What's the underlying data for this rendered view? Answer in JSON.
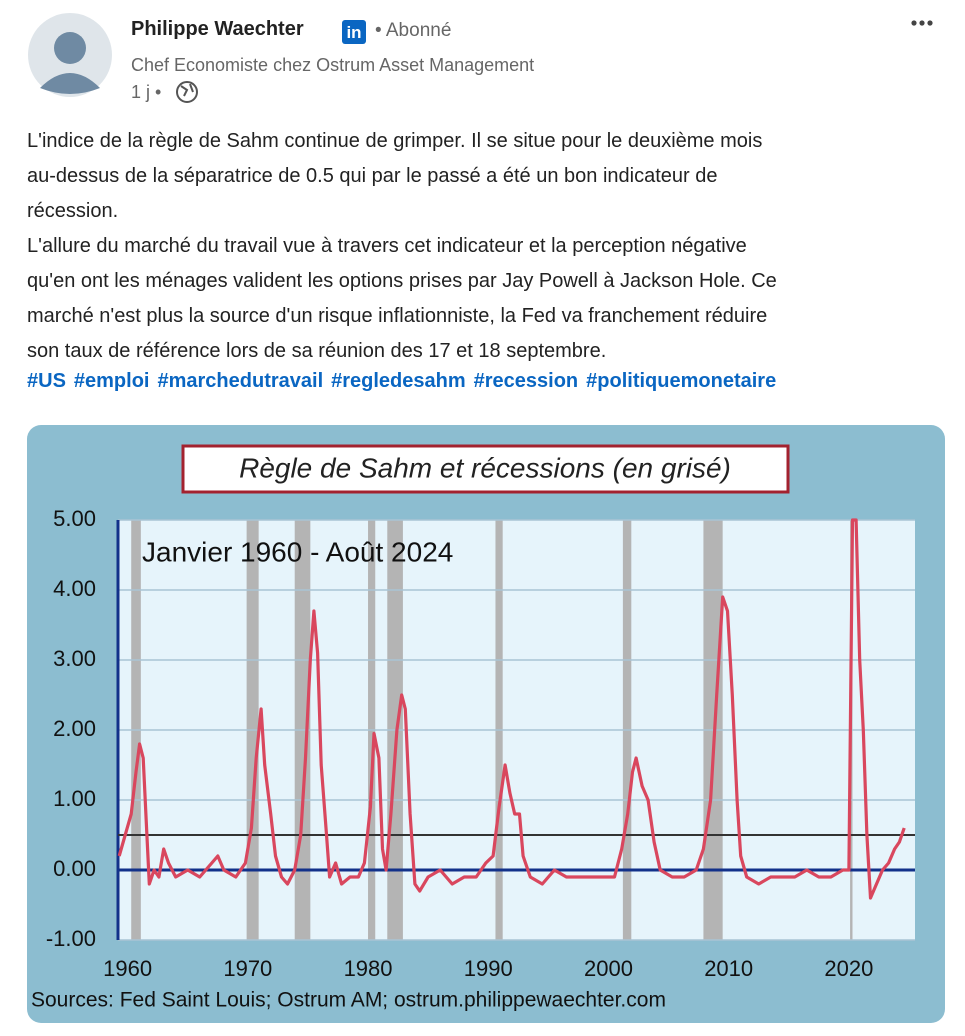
{
  "post": {
    "author": "Philippe Waechter",
    "badge": "in",
    "status": "• Abonné",
    "headline": "Chef Economiste chez Ostrum Asset Management",
    "time": "1 j •",
    "text_lines": [
      "L'indice de la règle de Sahm continue de grimper. Il se situe pour le deuxième mois",
      "au-dessus de la séparatrice de 0.5 qui par le passé a été un bon indicateur de",
      "récession.",
      "L'allure du marché du travail vue à travers cet indicateur et la perception négative",
      "qu'en ont les ménages valident les options prises par Jay Powell à Jackson Hole. Ce",
      "marché n'est plus la source d'un risque inflationniste, la Fed va franchement réduire",
      "son taux de référence lors de sa réunion des 17 et 18 septembre."
    ],
    "hashtags": [
      "#US",
      "#emploi",
      "#marchedutravail",
      "#regledesahm",
      "#recession",
      "#politiquemonetaire"
    ]
  },
  "chart_data": {
    "type": "line",
    "title": "Règle de Sahm et récessions (en grisé)",
    "annotation": "Janvier 1960 - Août 2024",
    "source": "Sources: Fed Saint Louis; Ostrum AM; ostrum.philippewaechter.com",
    "xlim": [
      1959.2,
      2025.5
    ],
    "xticks": [
      1960,
      1970,
      1980,
      1990,
      2000,
      2010,
      2020
    ],
    "ylim": [
      -1,
      5
    ],
    "yticks": [
      {
        "value": 5,
        "label": "5.00"
      },
      {
        "value": 4,
        "label": "4.00"
      },
      {
        "value": 3,
        "label": "3.00"
      },
      {
        "value": 2,
        "label": "2.00"
      },
      {
        "value": 1,
        "label": "1.00"
      },
      {
        "value": 0,
        "label": "0.00"
      },
      {
        "value": -1,
        "label": "-1.00"
      }
    ],
    "grid": true,
    "threshold": 0.5,
    "recessions": [
      [
        1960.3,
        1961.1
      ],
      [
        1969.9,
        1970.9
      ],
      [
        1973.9,
        1975.2
      ],
      [
        1980.0,
        1980.6
      ],
      [
        1981.6,
        1982.9
      ],
      [
        1990.6,
        1991.2
      ],
      [
        2001.2,
        2001.9
      ],
      [
        2007.9,
        2009.5
      ],
      [
        2020.1,
        2020.3
      ]
    ],
    "series": [
      {
        "color": "#d9475e",
        "x": [
          1959.3,
          1959.8,
          1960.3,
          1960.7,
          1961.0,
          1961.3,
          1961.6,
          1961.8,
          1962.2,
          1962.6,
          1963.0,
          1963.4,
          1964,
          1965,
          1966,
          1967,
          1967.5,
          1968,
          1969,
          1969.8,
          1970.3,
          1970.7,
          1971.1,
          1971.4,
          1971.9,
          1972.3,
          1972.8,
          1973.3,
          1973.9,
          1974.4,
          1974.8,
          1975.2,
          1975.5,
          1975.8,
          1976.1,
          1976.5,
          1976.8,
          1977.3,
          1977.8,
          1978.5,
          1979.2,
          1979.7,
          1980.2,
          1980.5,
          1980.9,
          1981.2,
          1981.5,
          1981.9,
          1982.4,
          1982.8,
          1983.1,
          1983.5,
          1983.9,
          1984.3,
          1985,
          1986,
          1987,
          1988,
          1989,
          1989.8,
          1990.4,
          1990.9,
          1991.4,
          1991.8,
          1992.2,
          1992.6,
          1992.9,
          1993.5,
          1994.5,
          1995.5,
          1996.5,
          1997.5,
          1998.5,
          1999.5,
          2000.5,
          2001.1,
          2001.6,
          2002.0,
          2002.3,
          2002.8,
          2003.3,
          2003.8,
          2004.3,
          2005.3,
          2006.3,
          2007.3,
          2007.9,
          2008.5,
          2009.0,
          2009.5,
          2009.9,
          2010.3,
          2010.7,
          2011.0,
          2011.5,
          2012.5,
          2013.5,
          2014.5,
          2015.5,
          2016.5,
          2017.5,
          2018.5,
          2019.5,
          2020.0,
          2020.3,
          2020.6,
          2020.9,
          2021.2,
          2021.5,
          2021.8,
          2022.3,
          2022.8,
          2023.3,
          2023.8,
          2024.2,
          2024.6
        ],
        "values": [
          0.2,
          0.5,
          0.8,
          1.4,
          1.8,
          1.6,
          0.5,
          -0.2,
          0.0,
          -0.1,
          0.3,
          0.1,
          -0.1,
          0.0,
          -0.1,
          0.1,
          0.2,
          0.0,
          -0.1,
          0.1,
          0.6,
          1.6,
          2.3,
          1.5,
          0.8,
          0.2,
          -0.1,
          -0.2,
          0.0,
          0.5,
          1.6,
          3.0,
          3.7,
          3.1,
          1.5,
          0.6,
          -0.1,
          0.1,
          -0.2,
          -0.1,
          -0.1,
          0.1,
          0.9,
          1.95,
          1.6,
          0.3,
          0.0,
          0.8,
          2.0,
          2.5,
          2.3,
          0.8,
          -0.2,
          -0.3,
          -0.1,
          0.0,
          -0.2,
          -0.1,
          -0.1,
          0.1,
          0.2,
          0.9,
          1.5,
          1.1,
          0.8,
          0.8,
          0.2,
          -0.1,
          -0.2,
          0.0,
          -0.1,
          -0.1,
          -0.1,
          -0.1,
          -0.1,
          0.3,
          0.8,
          1.4,
          1.6,
          1.2,
          1.0,
          0.4,
          0.0,
          -0.1,
          -0.1,
          0.0,
          0.3,
          1.0,
          2.5,
          3.9,
          3.7,
          2.5,
          1.0,
          0.2,
          -0.1,
          -0.2,
          -0.1,
          -0.1,
          -0.1,
          0.0,
          -0.1,
          -0.1,
          0.0,
          0.0,
          5.0,
          5.0,
          3.0,
          2.0,
          0.5,
          -0.4,
          -0.2,
          0.0,
          0.1,
          0.3,
          0.4,
          0.6
        ]
      }
    ]
  }
}
